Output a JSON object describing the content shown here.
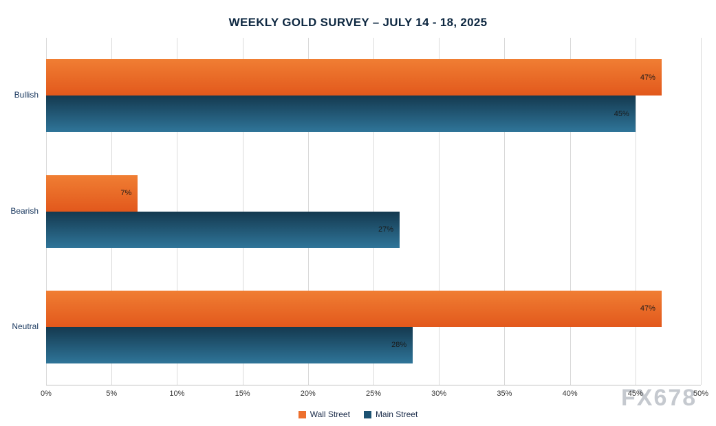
{
  "title": "WEEKLY GOLD SURVEY – JULY 14 - 18, 2025",
  "watermark": "FX678",
  "legend": {
    "items": [
      "Wall Street",
      "Main Street"
    ]
  },
  "chart_data": {
    "type": "bar",
    "orientation": "horizontal",
    "title": "WEEKLY GOLD SURVEY – JULY 14 - 18, 2025",
    "categories": [
      "Bullish",
      "Bearish",
      "Neutral"
    ],
    "series": [
      {
        "name": "Wall Street",
        "color": "#ed6f2d",
        "color_top": "#f07e33",
        "color_bottom": "#e2581c",
        "values": [
          47,
          7,
          47
        ]
      },
      {
        "name": "Main Street",
        "color": "#1c5272",
        "color_top": "#14394f",
        "color_bottom": "#2f7599",
        "values": [
          45,
          27,
          28
        ]
      }
    ],
    "data_labels": [
      [
        "47%",
        "7%",
        "47%"
      ],
      [
        "45%",
        "27%",
        "28%"
      ]
    ],
    "xlim": [
      0,
      50
    ],
    "tick_step": 5,
    "x_ticks": [
      "0%",
      "5%",
      "10%",
      "15%",
      "20%",
      "25%",
      "30%",
      "35%",
      "40%",
      "45%",
      "50%"
    ],
    "xlabel": "",
    "ylabel": "",
    "grid": "vertical",
    "legend_position": "bottom"
  }
}
